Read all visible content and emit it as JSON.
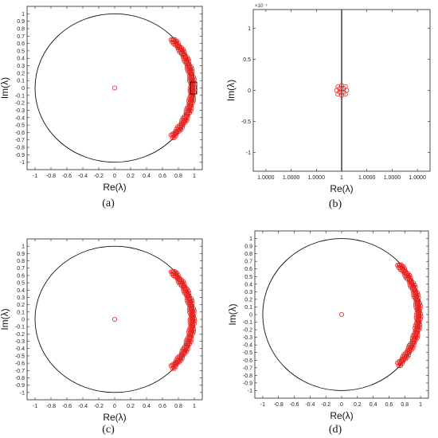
{
  "chart_data": [
    {
      "type": "scatter",
      "caption": "(a)",
      "xlabel": "Re(λ)",
      "ylabel": "Im(λ)",
      "xlim": [
        -1.1,
        1.1
      ],
      "ylim": [
        -1.1,
        1.1
      ],
      "xticks": [
        "-1",
        "-0.8",
        "-0.6",
        "-0.4",
        "-0.2",
        "0",
        "0.2",
        "0.4",
        "0.6",
        "0.8",
        "1"
      ],
      "yticks": [
        "-1",
        "-0.9",
        "-0.8",
        "-0.7",
        "-0.6",
        "-0.5",
        "-0.4",
        "-0.3",
        "-0.2",
        "-0.1",
        "0",
        "0.1",
        "0.2",
        "0.3",
        "0.4",
        "0.5",
        "0.6",
        "0.7",
        "0.8",
        "0.9",
        "1"
      ],
      "grid": false,
      "unit_circle": true,
      "series": [
        {
          "values": [
            [
              0,
              0
            ]
          ]
        },
        {
          "arc_angle_range_deg": [
            -42,
            42
          ],
          "radius": 1.0
        }
      ],
      "highlight_box": {
        "x": [
          0.95,
          1.03
        ],
        "y": [
          -0.08,
          0.08
        ]
      }
    },
    {
      "type": "scatter",
      "caption": "(b)",
      "xlabel": "Re(λ)",
      "ylabel": "Im(λ)",
      "exponent_label": "×10⁻⁷",
      "xlim": [
        -3.5,
        3.5
      ],
      "ylim": [
        -1.3,
        1.3
      ],
      "xticks_values": [
        -3,
        -2,
        -1,
        0,
        1,
        2,
        3
      ],
      "xticks": [
        "1.0000",
        "1.0000",
        "1.0000",
        "1",
        "1.0000",
        "1.0000",
        "1.0000"
      ],
      "yticks_values": [
        -1,
        -0.5,
        0,
        0.5,
        1
      ],
      "yticks": [
        "-1",
        "-0.5",
        "0",
        "0.5",
        "1"
      ],
      "grid": false,
      "vertical_line_x": 0,
      "series": [
        {
          "values": [
            [
              0,
              0.08
            ],
            [
              -0.15,
              0.06
            ],
            [
              0.15,
              0.06
            ],
            [
              -0.2,
              0
            ],
            [
              0.2,
              0
            ],
            [
              -0.15,
              -0.06
            ],
            [
              0.15,
              -0.06
            ],
            [
              0,
              -0.08
            ],
            [
              -0.08,
              0.03
            ],
            [
              0.08,
              0.03
            ],
            [
              -0.08,
              -0.03
            ],
            [
              0.08,
              -0.03
            ],
            [
              0,
              0
            ]
          ]
        }
      ]
    },
    {
      "type": "scatter",
      "caption": "(c)",
      "xlabel": "Re(λ)",
      "ylabel": "Im(λ)",
      "xlim": [
        -1.1,
        1.1
      ],
      "ylim": [
        -1.1,
        1.1
      ],
      "xticks": [
        "-1",
        "-0.8",
        "-0.6",
        "-0.4",
        "-0.2",
        "0",
        "0.2",
        "0.4",
        "0.6",
        "0.8",
        "1"
      ],
      "yticks": [
        "-1",
        "-0.9",
        "-0.8",
        "-0.7",
        "-0.6",
        "-0.5",
        "-0.4",
        "-0.3",
        "-0.2",
        "-0.1",
        "0",
        "0.1",
        "0.2",
        "0.3",
        "0.4",
        "0.5",
        "0.6",
        "0.7",
        "0.8",
        "0.9",
        "1"
      ],
      "grid": false,
      "unit_circle": true,
      "series": [
        {
          "values": [
            [
              0,
              0
            ]
          ]
        },
        {
          "arc_angle_range_deg": [
            -42,
            42
          ],
          "radius": 1.0
        }
      ]
    },
    {
      "type": "scatter",
      "caption": "(d)",
      "xlabel": "Re(λ)",
      "ylabel": "Im(λ)",
      "xlim": [
        -1.1,
        1.1
      ],
      "ylim": [
        -1.1,
        1.1
      ],
      "xticks": [
        "-1",
        "-0.8",
        "-0.6",
        "-0.4",
        "-0.2",
        "0",
        "0.2",
        "0.4",
        "0.6",
        "0.8",
        "1"
      ],
      "yticks": [
        "-1",
        "-0.9",
        "-0.8",
        "-0.7",
        "-0.6",
        "-0.5",
        "-0.4",
        "-0.3",
        "-0.2",
        "-0.1",
        "0",
        "0.1",
        "0.2",
        "0.3",
        "0.4",
        "0.5",
        "0.6",
        "0.7",
        "0.8",
        "0.9",
        "1"
      ],
      "grid": false,
      "unit_circle": true,
      "series": [
        {
          "values": [
            [
              0,
              0
            ]
          ]
        },
        {
          "arc_angle_range_deg": [
            -42,
            42
          ],
          "radius": 1.0
        }
      ]
    }
  ],
  "colors": {
    "points": "#e8231f",
    "circle": "#111111",
    "axes": "#222222"
  }
}
